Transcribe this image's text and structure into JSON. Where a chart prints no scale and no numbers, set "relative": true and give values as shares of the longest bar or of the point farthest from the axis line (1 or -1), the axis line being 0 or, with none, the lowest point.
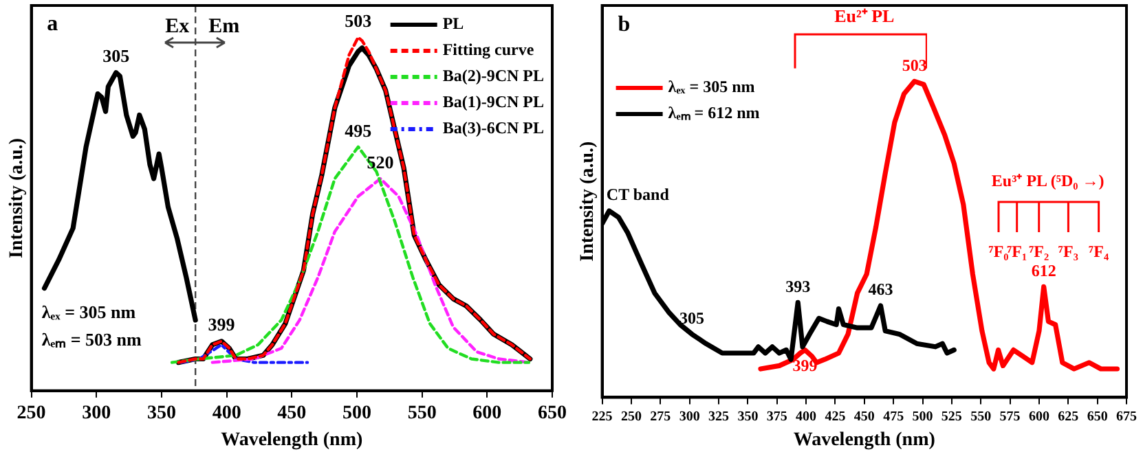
{
  "chart_data": [
    {
      "type": "line",
      "xlabel": "Wavelength (nm)",
      "ylabel": "Intensity (a.u.)",
      "relative": true,
      "xlim": [
        250,
        650
      ],
      "xticks": [
        250,
        300,
        350,
        400,
        450,
        500,
        550,
        600,
        650
      ],
      "legend": "top right",
      "marker": "none",
      "series": [
        {
          "color": "#000000",
          "x": [
            260,
            271,
            282,
            292,
            301,
            304,
            307,
            309,
            315,
            318,
            323,
            328,
            330,
            333,
            337,
            341,
            344,
            348,
            350,
            355,
            362,
            369,
            376
          ],
          "values": [
            0.29,
            0.37,
            0.46,
            0.69,
            0.84,
            0.83,
            0.79,
            0.86,
            0.9,
            0.89,
            0.78,
            0.72,
            0.73,
            0.78,
            0.74,
            0.64,
            0.6,
            0.67,
            0.63,
            0.52,
            0.43,
            0.32,
            0.2
          ]
        },
        {
          "name": "PL",
          "color": "#000000",
          "x": [
            363,
            376,
            382,
            389,
            396,
            402,
            407,
            416,
            428,
            435,
            445,
            459,
            466,
            473,
            483,
            494,
            501,
            504,
            509,
            515,
            522,
            529,
            536,
            544,
            553,
            563,
            574,
            584,
            595,
            605,
            619,
            626,
            633
          ],
          "values": [
            0.08,
            0.09,
            0.09,
            0.13,
            0.14,
            0.12,
            0.09,
            0.09,
            0.1,
            0.13,
            0.19,
            0.34,
            0.5,
            0.61,
            0.8,
            0.92,
            0.96,
            0.97,
            0.95,
            0.91,
            0.85,
            0.74,
            0.63,
            0.44,
            0.37,
            0.3,
            0.26,
            0.24,
            0.2,
            0.16,
            0.13,
            0.11,
            0.09
          ]
        },
        {
          "name": "Fitting curve",
          "color": "#ff0000",
          "line_style": "dashed",
          "x": [
            363,
            376,
            382,
            389,
            396,
            402,
            407,
            416,
            428,
            435,
            445,
            459,
            466,
            473,
            483,
            494,
            501,
            504,
            509,
            515,
            522,
            529,
            536,
            544,
            553,
            563,
            574,
            584,
            595,
            605,
            619,
            626,
            633
          ],
          "values": [
            0.08,
            0.09,
            0.09,
            0.13,
            0.14,
            0.12,
            0.09,
            0.09,
            0.1,
            0.13,
            0.19,
            0.34,
            0.5,
            0.61,
            0.8,
            0.95,
            1.0,
            0.99,
            0.96,
            0.91,
            0.85,
            0.74,
            0.63,
            0.44,
            0.37,
            0.3,
            0.26,
            0.24,
            0.2,
            0.16,
            0.13,
            0.11,
            0.09
          ]
        },
        {
          "name": "Ba(2)-9CN PL",
          "color": "#22dd22",
          "line_style": "dashed",
          "x": [
            358,
            379,
            407,
            424,
            442,
            456,
            470,
            483,
            501,
            515,
            529,
            543,
            556,
            570,
            588,
            609,
            632
          ],
          "values": [
            0.08,
            0.09,
            0.1,
            0.13,
            0.2,
            0.31,
            0.45,
            0.6,
            0.69,
            0.62,
            0.48,
            0.32,
            0.19,
            0.12,
            0.09,
            0.08,
            0.08
          ]
        },
        {
          "name": "Ba(1)-9CN PL",
          "color": "#ff22ff",
          "line_style": "dashed",
          "x": [
            389,
            421,
            442,
            456,
            470,
            483,
            501,
            518,
            532,
            546,
            560,
            574,
            592,
            609,
            632
          ],
          "values": [
            0.08,
            0.09,
            0.12,
            0.2,
            0.32,
            0.45,
            0.55,
            0.6,
            0.55,
            0.44,
            0.3,
            0.18,
            0.11,
            0.09,
            0.08
          ]
        },
        {
          "name": "Ba(3)-6CN PL",
          "color": "#1a1aff",
          "line_style": "dotted",
          "x": [
            365,
            379,
            396,
            407,
            421,
            462
          ],
          "values": [
            0.08,
            0.09,
            0.13,
            0.09,
            0.08,
            0.08
          ]
        }
      ],
      "ref_lines": [
        {
          "axis": "x",
          "value": 376,
          "color": "#444444",
          "line_style": "dashed"
        }
      ],
      "annotations": [
        "a",
        "Ex",
        "Em",
        "λₑₓ = 305 nm",
        "λₑₘ = 503 nm",
        {
          "text": "305",
          "x": 315,
          "y": 0.9
        },
        {
          "text": "503",
          "x": 501,
          "y": 1.0
        },
        {
          "text": "495",
          "x": 501,
          "y": 0.69
        },
        {
          "text": "520",
          "x": 518,
          "y": 0.6
        },
        {
          "text": "399",
          "x": 396,
          "y": 0.14
        }
      ]
    },
    {
      "type": "line",
      "xlabel": "Wavelength (nm)",
      "ylabel": "Intensity (a.u.)",
      "relative": true,
      "xlim": [
        225,
        675
      ],
      "xticks": [
        225,
        250,
        275,
        300,
        325,
        350,
        375,
        400,
        425,
        450,
        475,
        500,
        525,
        550,
        575,
        600,
        625,
        650,
        675
      ],
      "legend": "top left",
      "marker": "none",
      "series": [
        {
          "name": "λₑₓ = 305 nm",
          "color": "#ff0000",
          "x": [
            361,
            377,
            389,
            395,
            399,
            405,
            409,
            416,
            428,
            436,
            444,
            452,
            460,
            468,
            476,
            484,
            493,
            501,
            509,
            519,
            527,
            535,
            543,
            551,
            557,
            561,
            565,
            569,
            578,
            586,
            594,
            600,
            604,
            608,
            614,
            620,
            630,
            643,
            653,
            667
          ],
          "values": [
            0.09,
            0.1,
            0.12,
            0.14,
            0.15,
            0.13,
            0.11,
            0.12,
            0.14,
            0.2,
            0.33,
            0.39,
            0.54,
            0.71,
            0.87,
            0.96,
            1.0,
            0.99,
            0.92,
            0.83,
            0.74,
            0.61,
            0.39,
            0.21,
            0.11,
            0.09,
            0.15,
            0.1,
            0.15,
            0.13,
            0.11,
            0.21,
            0.35,
            0.24,
            0.23,
            0.11,
            0.09,
            0.11,
            0.09,
            0.09
          ]
        },
        {
          "name": "λₑₘ = 612 nm",
          "color": "#000000",
          "x": [
            225,
            231,
            239,
            247,
            259,
            270,
            282,
            292,
            302,
            314,
            328,
            341,
            355,
            359,
            365,
            371,
            377,
            383,
            387,
            393,
            397,
            403,
            411,
            418,
            426,
            428,
            432,
            444,
            456,
            464,
            468,
            480,
            495,
            511,
            517,
            521,
            527
          ],
          "values": [
            0.55,
            0.59,
            0.57,
            0.52,
            0.42,
            0.33,
            0.27,
            0.23,
            0.2,
            0.17,
            0.14,
            0.14,
            0.14,
            0.16,
            0.14,
            0.16,
            0.14,
            0.15,
            0.12,
            0.3,
            0.16,
            0.2,
            0.25,
            0.24,
            0.23,
            0.28,
            0.23,
            0.22,
            0.22,
            0.29,
            0.21,
            0.2,
            0.17,
            0.16,
            0.17,
            0.14,
            0.15
          ]
        }
      ],
      "annotations": [
        "b",
        "Eu²⁺ PL",
        "Eu³⁺ PL (⁵D₀ →)",
        "⁷F₀",
        "⁷F₁",
        "⁷F₂",
        "⁷F₃",
        "⁷F₄",
        {
          "text": "CT band",
          "x": 231,
          "y": 0.59
        },
        {
          "text": "305",
          "x": 302,
          "y": 0.2
        },
        {
          "text": "393",
          "x": 393,
          "y": 0.3
        },
        {
          "text": "463",
          "x": 464,
          "y": 0.29
        },
        {
          "text": "399",
          "x": 399,
          "y": 0.15
        },
        {
          "text": "503",
          "x": 493,
          "y": 1.0
        },
        {
          "text": "612",
          "x": 604,
          "y": 0.35
        }
      ]
    }
  ]
}
